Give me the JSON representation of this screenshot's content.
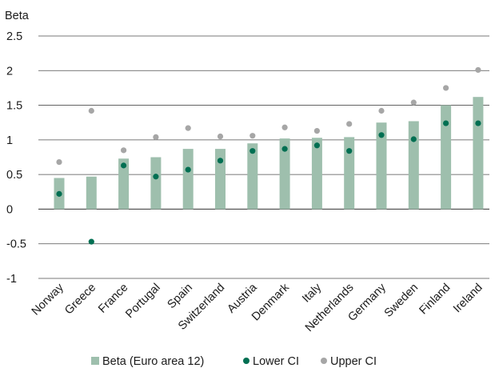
{
  "chart_data": {
    "type": "bar",
    "title": "",
    "xlabel": "",
    "ylabel": "Beta",
    "ylim": [
      -1,
      2.5
    ],
    "y_ticks": [
      "2.5",
      "2",
      "1.5",
      "1",
      "0.5",
      "0",
      "-0.5",
      "-1"
    ],
    "grid": true,
    "legend_position": "bottom",
    "categories": [
      "Norway",
      "Greece",
      "France",
      "Portugal",
      "Spain",
      "Switzerland",
      "Austria",
      "Denmark",
      "Italy",
      "Netherlands",
      "Germany",
      "Sweden",
      "Finland",
      "Ireland"
    ],
    "series": [
      {
        "name": "Beta (Euro area 12)",
        "kind": "bar",
        "color": "#9ebfad",
        "values": [
          0.45,
          0.47,
          0.73,
          0.75,
          0.87,
          0.87,
          0.95,
          1.02,
          1.03,
          1.04,
          1.25,
          1.27,
          1.5,
          1.62
        ]
      },
      {
        "name": "Lower CI",
        "kind": "point",
        "color": "#006f52",
        "values": [
          0.22,
          -0.47,
          0.63,
          0.47,
          0.57,
          0.7,
          0.84,
          0.87,
          0.92,
          0.84,
          1.07,
          1.01,
          1.24,
          1.24
        ]
      },
      {
        "name": "Upper CI",
        "kind": "point",
        "color": "#a6a6a6",
        "values": [
          0.68,
          1.42,
          0.85,
          1.04,
          1.17,
          1.05,
          1.06,
          1.18,
          1.13,
          1.23,
          1.42,
          1.54,
          1.75,
          2.01
        ]
      }
    ]
  }
}
